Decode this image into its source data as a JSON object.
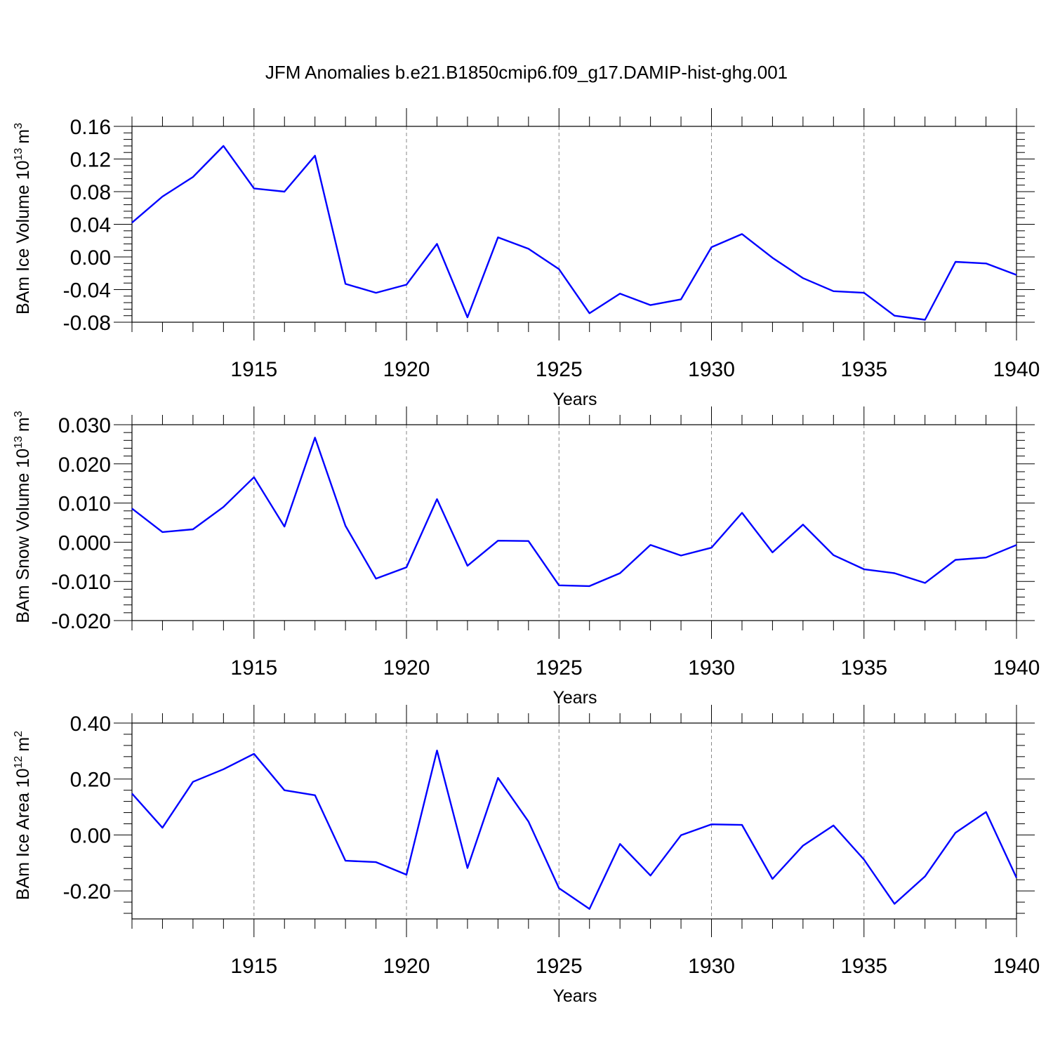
{
  "title": "JFM Anomalies b.e21.B1850cmip6.f09_g17.DAMIP-hist-ghg.001",
  "line_color": "#0000ff",
  "chart_data": [
    {
      "type": "line",
      "ylabel": "BAm Ice Volume 10",
      "ylabel_exp": "13",
      "ylabel_unit": "m",
      "ylabel_unit_exp": "3",
      "xlabel": "Years",
      "xlim": [
        1911,
        1940
      ],
      "ylim": [
        -0.08,
        0.16
      ],
      "yticks": [
        -0.08,
        -0.04,
        0.0,
        0.04,
        0.08,
        0.12,
        0.16
      ],
      "ytick_labels": [
        "-0.08",
        "-0.04",
        "0.00",
        "0.04",
        "0.08",
        "0.12",
        "0.16"
      ],
      "xticks": [
        1915,
        1920,
        1925,
        1930,
        1935,
        1940
      ],
      "xtick_labels": [
        "1915",
        "1920",
        "1925",
        "1930",
        "1935",
        "1940"
      ],
      "x": [
        1911,
        1912,
        1913,
        1914,
        1915,
        1916,
        1917,
        1918,
        1919,
        1920,
        1921,
        1922,
        1923,
        1924,
        1925,
        1926,
        1927,
        1928,
        1929,
        1930,
        1931,
        1932,
        1933,
        1934,
        1935,
        1936,
        1937,
        1938,
        1939,
        1940
      ],
      "values": [
        0.042,
        0.074,
        0.098,
        0.136,
        0.084,
        0.08,
        0.124,
        -0.033,
        -0.044,
        -0.034,
        0.016,
        -0.074,
        0.024,
        0.01,
        -0.015,
        -0.069,
        -0.045,
        -0.059,
        -0.052,
        0.012,
        0.028,
        -0.001,
        -0.026,
        -0.042,
        -0.044,
        -0.072,
        -0.077,
        -0.006,
        -0.008,
        -0.022
      ],
      "grid": "dashed vertical at major x ticks"
    },
    {
      "type": "line",
      "ylabel": "BAm Snow Volume 10",
      "ylabel_exp": "13",
      "ylabel_unit": "m",
      "ylabel_unit_exp": "3",
      "xlabel": "Years",
      "xlim": [
        1911,
        1940
      ],
      "ylim": [
        -0.02,
        0.03
      ],
      "yticks": [
        -0.02,
        -0.01,
        0.0,
        0.01,
        0.02,
        0.03
      ],
      "ytick_labels": [
        "-0.020",
        "-0.010",
        "0.000",
        "0.010",
        "0.020",
        "0.030"
      ],
      "xticks": [
        1915,
        1920,
        1925,
        1930,
        1935,
        1940
      ],
      "xtick_labels": [
        "1915",
        "1920",
        "1925",
        "1930",
        "1935",
        "1940"
      ],
      "x": [
        1911,
        1912,
        1913,
        1914,
        1915,
        1916,
        1917,
        1918,
        1919,
        1920,
        1921,
        1922,
        1923,
        1924,
        1925,
        1926,
        1927,
        1928,
        1929,
        1930,
        1931,
        1932,
        1933,
        1934,
        1935,
        1936,
        1937,
        1938,
        1939,
        1940
      ],
      "values": [
        0.0086,
        0.0026,
        0.0033,
        0.009,
        0.0166,
        0.004,
        0.0267,
        0.0042,
        -0.0093,
        -0.0064,
        0.011,
        -0.006,
        0.0004,
        0.0003,
        -0.011,
        -0.0112,
        -0.0079,
        -0.0007,
        -0.0034,
        -0.0014,
        0.0075,
        -0.0026,
        0.0045,
        -0.0033,
        -0.0069,
        -0.0079,
        -0.0104,
        -0.0045,
        -0.0039,
        -0.0007
      ],
      "grid": "dashed vertical at major x ticks"
    },
    {
      "type": "line",
      "ylabel": "BAm Ice Area 10",
      "ylabel_exp": "12",
      "ylabel_unit": "m",
      "ylabel_unit_exp": "2",
      "xlabel": "Years",
      "xlim": [
        1911,
        1940
      ],
      "ylim": [
        -0.3,
        0.4
      ],
      "yticks": [
        -0.2,
        0.0,
        0.2,
        0.4
      ],
      "ytick_labels": [
        "-0.20",
        "0.00",
        "0.20",
        "0.40"
      ],
      "xticks": [
        1915,
        1920,
        1925,
        1930,
        1935,
        1940
      ],
      "xtick_labels": [
        "1915",
        "1920",
        "1925",
        "1930",
        "1935",
        "1940"
      ],
      "x": [
        1911,
        1912,
        1913,
        1914,
        1915,
        1916,
        1917,
        1918,
        1919,
        1920,
        1921,
        1922,
        1923,
        1924,
        1925,
        1926,
        1927,
        1928,
        1929,
        1930,
        1931,
        1932,
        1933,
        1934,
        1935,
        1936,
        1937,
        1938,
        1939,
        1940
      ],
      "values": [
        0.148,
        0.026,
        0.19,
        0.235,
        0.29,
        0.16,
        0.142,
        -0.092,
        -0.097,
        -0.142,
        0.302,
        -0.118,
        0.204,
        0.048,
        -0.19,
        -0.264,
        -0.032,
        -0.145,
        -0.001,
        0.038,
        0.036,
        -0.157,
        -0.038,
        0.034,
        -0.088,
        -0.246,
        -0.148,
        0.008,
        0.082,
        -0.153
      ],
      "grid": "dashed vertical at major x ticks"
    }
  ]
}
